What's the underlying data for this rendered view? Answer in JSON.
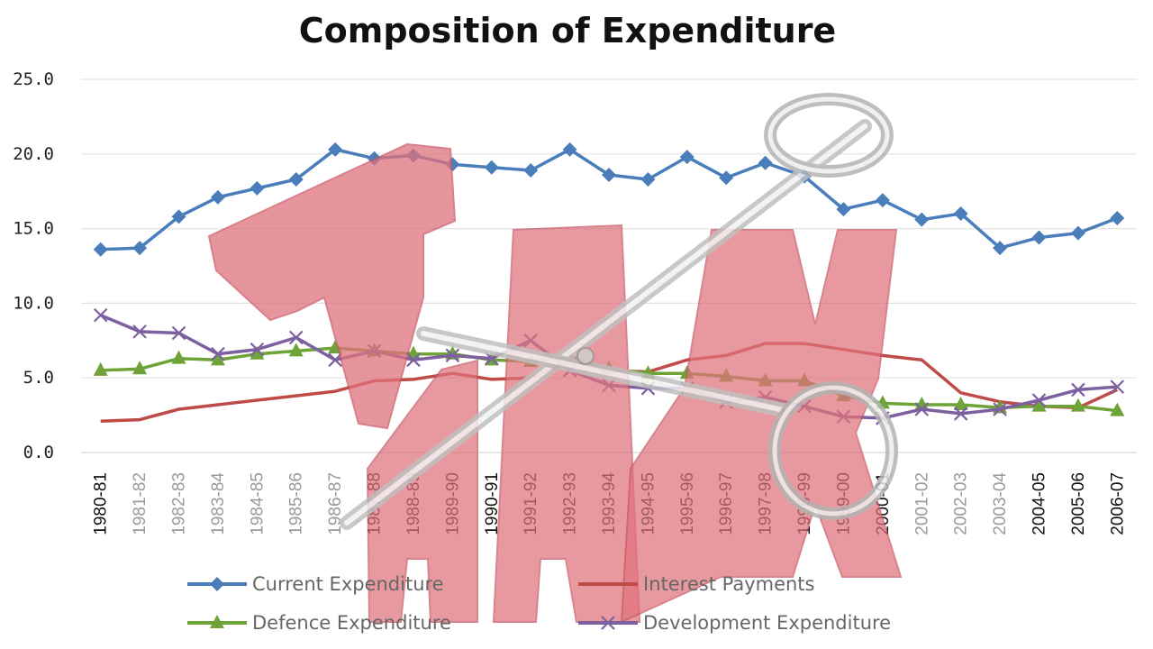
{
  "chart_data": {
    "type": "line",
    "title": "Composition of Expenditure",
    "xlabel": "",
    "ylabel": "",
    "ylim": [
      0,
      25
    ],
    "y_ticks": [
      "0.0",
      "5.0",
      "10.0",
      "15.0",
      "20.0",
      "25.0"
    ],
    "grid": true,
    "legend_position": "bottom",
    "categories": [
      "1980-81",
      "1981-82",
      "1982-83",
      "1983-84",
      "1984-85",
      "1985-86",
      "1986-87",
      "1987-88",
      "1988-89",
      "1989-90",
      "1990-91",
      "1991-92",
      "1992-93",
      "1993-94",
      "1994-95",
      "1995-96",
      "1996-97",
      "1997-98",
      "1998-99",
      "1999-00",
      "2000-01",
      "2001-02",
      "2002-03",
      "2003-04",
      "2004-05",
      "2005-06",
      "2006-07"
    ],
    "series": [
      {
        "name": "Current Expenditure",
        "color": "#4a7ebb",
        "marker": "diamond",
        "values": [
          13.6,
          13.7,
          15.8,
          17.1,
          17.7,
          18.3,
          20.3,
          19.7,
          19.9,
          19.3,
          19.1,
          18.9,
          20.3,
          18.6,
          18.3,
          19.8,
          18.4,
          19.4,
          18.5,
          16.3,
          16.9,
          15.6,
          16.0,
          13.7,
          14.4,
          14.7,
          15.7
        ]
      },
      {
        "name": "Interest Payments",
        "color": "#be4b48",
        "marker": "none",
        "values": [
          2.1,
          2.2,
          2.9,
          3.2,
          3.5,
          3.8,
          4.1,
          4.8,
          4.9,
          5.3,
          4.9,
          5.0,
          6.1,
          5.5,
          5.4,
          6.2,
          6.5,
          7.3,
          7.3,
          6.9,
          6.5,
          6.2,
          4.0,
          3.4,
          3.1,
          3.0,
          4.2
        ]
      },
      {
        "name": "Defence Expenditure",
        "color": "#6ea338",
        "marker": "triangle",
        "values": [
          5.5,
          5.6,
          6.3,
          6.2,
          6.6,
          6.8,
          7.0,
          6.8,
          6.6,
          6.6,
          6.2,
          6.1,
          6.4,
          5.6,
          5.3,
          5.3,
          5.1,
          4.8,
          4.8,
          3.8,
          3.3,
          3.2,
          3.2,
          3.0,
          3.1,
          3.1,
          2.8
        ]
      },
      {
        "name": "Development Expenditure",
        "color": "#7d60a0",
        "marker": "x",
        "values": [
          9.2,
          8.1,
          8.0,
          6.6,
          6.9,
          7.7,
          6.2,
          6.8,
          6.2,
          6.5,
          6.3,
          7.5,
          5.5,
          4.5,
          4.3,
          4.3,
          3.4,
          3.7,
          3.1,
          2.4,
          2.3,
          2.9,
          2.6,
          2.9,
          3.5,
          4.2,
          4.4
        ]
      }
    ]
  },
  "overlay": {
    "image": "tax-scissors-illustration",
    "letters": [
      "T",
      "A",
      "X"
    ],
    "letter_color": "#e0727c"
  }
}
